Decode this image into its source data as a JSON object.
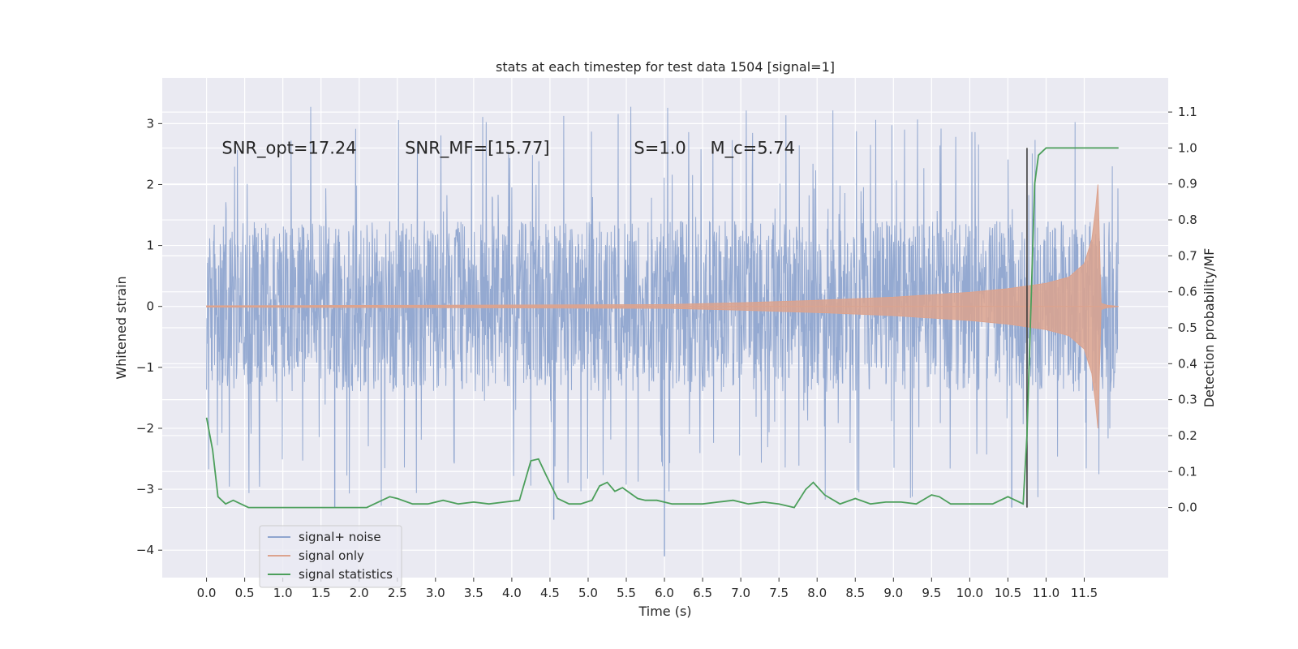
{
  "chart_data": {
    "type": "line",
    "title": "stats at each timestep for test data 1504 [signal=1]",
    "xlabel": "Time (s)",
    "ylabel": "Whitened strain",
    "ylabel_right": "Detection probability/MF",
    "xlim": [
      -0.58,
      12.6
    ],
    "ylim": [
      -4.45,
      3.75
    ],
    "ylim_right": [
      -0.195,
      1.195
    ],
    "x_ticks": [
      0.0,
      0.5,
      1.0,
      1.5,
      2.0,
      2.5,
      3.0,
      3.5,
      4.0,
      4.5,
      5.0,
      5.5,
      6.0,
      6.5,
      7.0,
      7.5,
      8.0,
      8.5,
      9.0,
      9.5,
      10.0,
      10.5,
      11.0,
      11.5
    ],
    "x_tick_labels": [
      "0.0",
      "0.5",
      "1.0",
      "1.5",
      "2.0",
      "2.5",
      "3.0",
      "3.5",
      "4.0",
      "4.5",
      "5.0",
      "5.5",
      "6.0",
      "6.5",
      "7.0",
      "7.5",
      "8.0",
      "8.5",
      "9.0",
      "9.5",
      "10.0",
      "10.5",
      "11.0",
      "11.5"
    ],
    "y_ticks": [
      3,
      2,
      1,
      0,
      -1,
      -2,
      -3,
      -4
    ],
    "y_tick_labels": [
      "3",
      "2",
      "1",
      "0",
      "−1",
      "−2",
      "−3",
      "−4"
    ],
    "y_right_ticks": [
      1.1,
      1.0,
      0.9,
      0.8,
      0.7,
      0.6,
      0.5,
      0.4,
      0.3,
      0.2,
      0.1,
      0.0
    ],
    "y_right_tick_labels": [
      "1.1",
      "1.0",
      "0.9",
      "0.8",
      "0.7",
      "0.6",
      "0.5",
      "0.4",
      "0.3",
      "0.2",
      "0.1",
      "0.0"
    ],
    "grid": true,
    "legend_position": "lower-left",
    "annotations": [
      {
        "text": "SNR_opt=17.24",
        "x": 0.2,
        "y": 2.6
      },
      {
        "text": "SNR_MF=[15.77]",
        "x": 2.6,
        "y": 2.6
      },
      {
        "text": "S=1.0",
        "x": 5.6,
        "y": 2.6
      },
      {
        "text": "M_c=5.74",
        "x": 6.6,
        "y": 2.6
      }
    ],
    "detection_marker": {
      "x": 10.75,
      "y_right_range": [
        0.0,
        1.0
      ]
    },
    "series": [
      {
        "name": "signal+ noise",
        "color": "#8fa5cf",
        "kind": "noise-band",
        "x_range": [
          0.0,
          11.95
        ],
        "core_amplitude": 1.4,
        "spike_max": 3.3,
        "spike_min": -3.4,
        "outliers": [
          {
            "x": 6.0,
            "y": -4.1
          },
          {
            "x": 4.55,
            "y": -3.5
          },
          {
            "x": 1.68,
            "y": -3.3
          },
          {
            "x": 10.55,
            "y": -3.3
          }
        ]
      },
      {
        "name": "signal only",
        "color": "#dca38e",
        "kind": "chirp-envelope",
        "x": [
          0.0,
          6.0,
          7.0,
          8.0,
          9.0,
          10.0,
          10.5,
          11.0,
          11.3,
          11.5,
          11.6,
          11.65,
          11.68,
          11.72,
          11.8,
          11.95
        ],
        "envelope": [
          0.01,
          0.03,
          0.06,
          0.1,
          0.15,
          0.23,
          0.29,
          0.38,
          0.48,
          0.7,
          1.1,
          1.6,
          2.0,
          0.05,
          0.02,
          0.0
        ]
      },
      {
        "name": "signal statistics",
        "color": "#4c9f5b",
        "kind": "line",
        "axis": "right",
        "x": [
          0.0,
          0.08,
          0.15,
          0.25,
          0.35,
          0.45,
          0.55,
          0.7,
          0.9,
          1.1,
          1.3,
          1.5,
          1.7,
          1.9,
          2.1,
          2.3,
          2.4,
          2.5,
          2.7,
          2.9,
          3.1,
          3.3,
          3.5,
          3.7,
          3.9,
          4.1,
          4.25,
          4.35,
          4.45,
          4.6,
          4.75,
          4.9,
          5.05,
          5.15,
          5.25,
          5.35,
          5.45,
          5.55,
          5.65,
          5.75,
          5.9,
          6.1,
          6.3,
          6.5,
          6.7,
          6.9,
          7.1,
          7.3,
          7.5,
          7.7,
          7.85,
          7.95,
          8.1,
          8.3,
          8.5,
          8.7,
          8.9,
          9.1,
          9.3,
          9.5,
          9.6,
          9.75,
          9.9,
          10.1,
          10.3,
          10.5,
          10.6,
          10.7,
          10.75,
          10.8,
          10.85,
          10.9,
          10.95,
          11.0,
          11.2,
          11.5,
          11.8,
          11.95
        ],
        "values": [
          0.25,
          0.16,
          0.03,
          0.01,
          0.02,
          0.01,
          0.0,
          0.0,
          0.0,
          0.0,
          0.0,
          0.0,
          0.0,
          0.0,
          0.0,
          0.02,
          0.03,
          0.025,
          0.01,
          0.01,
          0.02,
          0.01,
          0.015,
          0.01,
          0.015,
          0.02,
          0.13,
          0.135,
          0.09,
          0.025,
          0.01,
          0.01,
          0.02,
          0.06,
          0.07,
          0.045,
          0.055,
          0.04,
          0.025,
          0.02,
          0.02,
          0.01,
          0.01,
          0.01,
          0.015,
          0.02,
          0.01,
          0.015,
          0.01,
          0.0,
          0.05,
          0.07,
          0.035,
          0.01,
          0.025,
          0.01,
          0.015,
          0.015,
          0.01,
          0.035,
          0.03,
          0.01,
          0.01,
          0.01,
          0.01,
          0.03,
          0.02,
          0.01,
          0.2,
          0.55,
          0.9,
          0.98,
          0.99,
          1.0,
          1.0,
          1.0,
          1.0,
          1.0
        ]
      }
    ]
  }
}
